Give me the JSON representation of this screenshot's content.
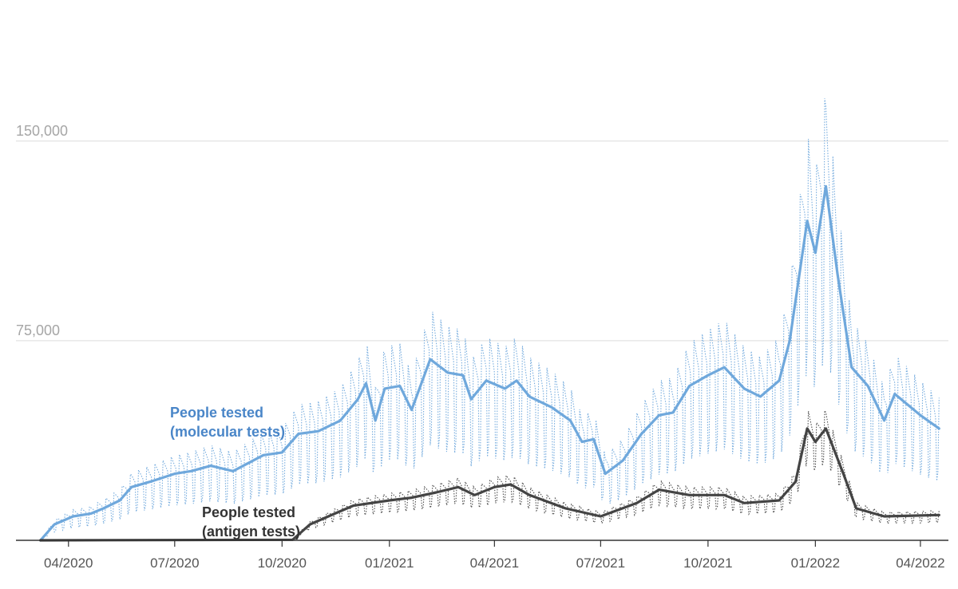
{
  "chart_data": {
    "type": "line",
    "title": "",
    "xlabel": "",
    "ylabel": "",
    "x_axis": {
      "ticks": [
        "2020-04-01",
        "2020-07-01",
        "2020-10-01",
        "2021-01-01",
        "2021-04-01",
        "2021-07-01",
        "2021-10-01",
        "2022-01-01",
        "2022-04-01"
      ],
      "tick_labels": [
        "04/2020",
        "07/2020",
        "10/2020",
        "01/2021",
        "04/2021",
        "07/2021",
        "10/2021",
        "01/2022",
        "04/2022"
      ],
      "range": [
        "2020-02-16",
        "2022-04-25"
      ]
    },
    "y_axis": {
      "ticks": [
        75000,
        150000
      ],
      "tick_labels": [
        "75,000",
        "150,000"
      ],
      "range": [
        0,
        200000
      ]
    },
    "grid": true,
    "legend": "inline labels",
    "series": [
      {
        "name": "People tested\n(molecular tests)",
        "label_lines": [
          "People tested",
          "(molecular tests)"
        ],
        "color": "#6fa8dc",
        "label_color": "#4a86c8",
        "averaged_points": [
          [
            "2020-03-08",
            0
          ],
          [
            "2020-03-20",
            6000
          ],
          [
            "2020-04-05",
            9000
          ],
          [
            "2020-04-20",
            10000
          ],
          [
            "2020-05-01",
            12000
          ],
          [
            "2020-05-15",
            15000
          ],
          [
            "2020-05-25",
            20000
          ],
          [
            "2020-06-10",
            22000
          ],
          [
            "2020-07-01",
            25000
          ],
          [
            "2020-07-15",
            26000
          ],
          [
            "2020-08-01",
            28000
          ],
          [
            "2020-08-20",
            26000
          ],
          [
            "2020-09-15",
            32000
          ],
          [
            "2020-10-01",
            33000
          ],
          [
            "2020-10-15",
            40000
          ],
          [
            "2020-11-01",
            41000
          ],
          [
            "2020-11-20",
            45000
          ],
          [
            "2020-12-05",
            53000
          ],
          [
            "2020-12-12",
            59000
          ],
          [
            "2020-12-20",
            45000
          ],
          [
            "2020-12-28",
            57000
          ],
          [
            "2021-01-10",
            58000
          ],
          [
            "2021-01-20",
            49000
          ],
          [
            "2021-02-05",
            68000
          ],
          [
            "2021-02-20",
            63000
          ],
          [
            "2021-03-05",
            62000
          ],
          [
            "2021-03-12",
            53000
          ],
          [
            "2021-03-25",
            60000
          ],
          [
            "2021-04-10",
            57000
          ],
          [
            "2021-04-20",
            60000
          ],
          [
            "2021-05-01",
            54000
          ],
          [
            "2021-05-20",
            50000
          ],
          [
            "2021-06-05",
            45000
          ],
          [
            "2021-06-15",
            37000
          ],
          [
            "2021-06-25",
            38000
          ],
          [
            "2021-07-05",
            25000
          ],
          [
            "2021-07-20",
            30000
          ],
          [
            "2021-08-05",
            40000
          ],
          [
            "2021-08-20",
            47000
          ],
          [
            "2021-09-01",
            48000
          ],
          [
            "2021-09-15",
            58000
          ],
          [
            "2021-10-01",
            62000
          ],
          [
            "2021-10-15",
            65000
          ],
          [
            "2021-11-01",
            57000
          ],
          [
            "2021-11-15",
            54000
          ],
          [
            "2021-12-01",
            60000
          ],
          [
            "2021-12-10",
            75000
          ],
          [
            "2021-12-25",
            120000
          ],
          [
            "2022-01-01",
            108000
          ],
          [
            "2022-01-10",
            133000
          ],
          [
            "2022-01-20",
            100000
          ],
          [
            "2022-02-01",
            65000
          ],
          [
            "2022-02-15",
            58000
          ],
          [
            "2022-03-01",
            45000
          ],
          [
            "2022-03-10",
            55000
          ],
          [
            "2022-04-01",
            47000
          ],
          [
            "2022-04-17",
            42000
          ]
        ]
      },
      {
        "name": "People tested\n(antigen tests)",
        "label_lines": [
          "People tested",
          "(antigen tests)"
        ],
        "color": "#444444",
        "label_color": "#333333",
        "averaged_points": [
          [
            "2020-03-08",
            0
          ],
          [
            "2020-10-10",
            200
          ],
          [
            "2020-10-25",
            6000
          ],
          [
            "2020-11-15",
            10000
          ],
          [
            "2020-12-01",
            13000
          ],
          [
            "2021-01-01",
            15000
          ],
          [
            "2021-01-20",
            16000
          ],
          [
            "2021-02-10",
            18000
          ],
          [
            "2021-03-01",
            20000
          ],
          [
            "2021-03-15",
            17000
          ],
          [
            "2021-04-01",
            20000
          ],
          [
            "2021-04-15",
            21000
          ],
          [
            "2021-05-01",
            17000
          ],
          [
            "2021-06-01",
            12000
          ],
          [
            "2021-07-01",
            9000
          ],
          [
            "2021-08-01",
            14000
          ],
          [
            "2021-08-20",
            19000
          ],
          [
            "2021-09-15",
            17000
          ],
          [
            "2021-10-15",
            17000
          ],
          [
            "2021-11-01",
            14000
          ],
          [
            "2021-12-01",
            15000
          ],
          [
            "2021-12-15",
            22000
          ],
          [
            "2021-12-25",
            42000
          ],
          [
            "2022-01-01",
            37000
          ],
          [
            "2022-01-10",
            42000
          ],
          [
            "2022-01-25",
            25000
          ],
          [
            "2022-02-05",
            12000
          ],
          [
            "2022-03-01",
            9000
          ],
          [
            "2022-04-17",
            9500
          ]
        ]
      }
    ]
  }
}
